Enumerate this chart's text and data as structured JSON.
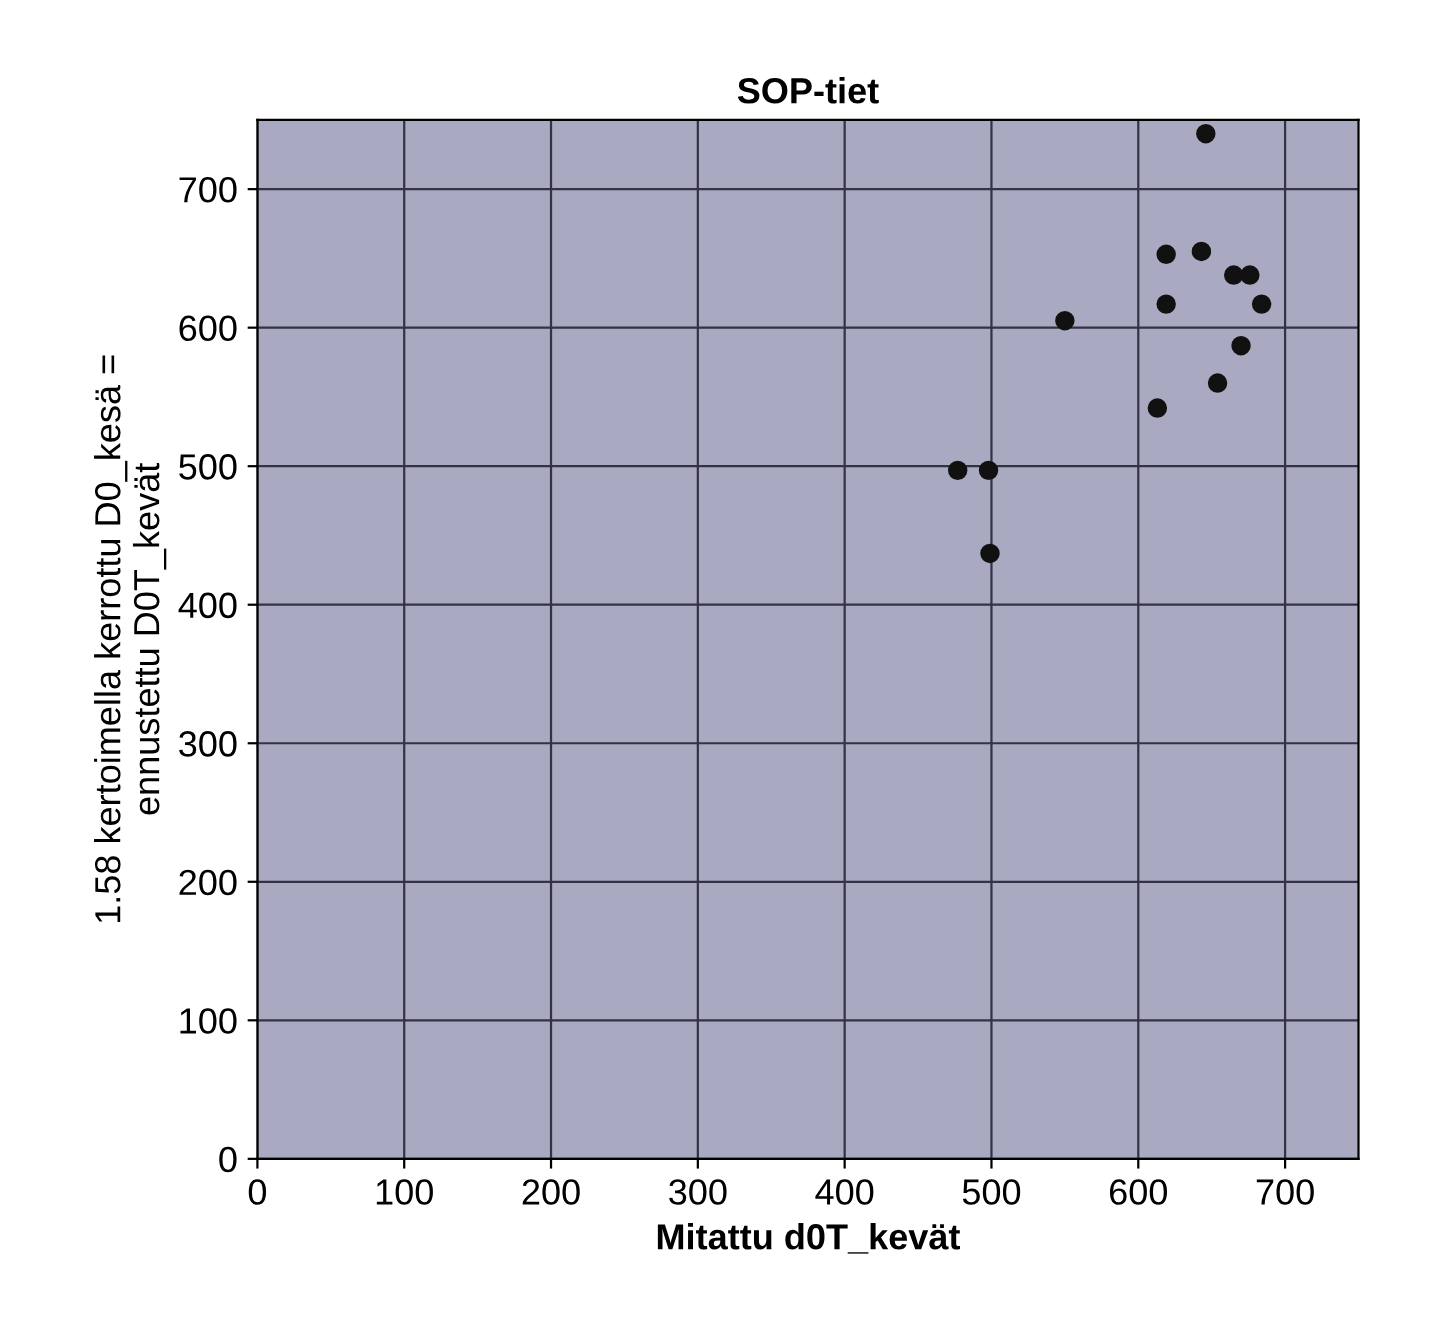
{
  "chart_data": {
    "type": "scatter",
    "title": "SOP-tiet",
    "xlabel": "Mitattu d0T_kevät",
    "ylabel": "1.58 kertoimella kerrottu D0_kesä =\nennustettu D0T_kevät",
    "x": [
      646,
      619,
      643,
      665,
      676,
      619,
      684,
      550,
      670,
      654,
      613,
      477,
      498,
      499
    ],
    "series": [
      {
        "color": "#111111",
        "values": [
          740,
          653,
          655,
          638,
          638,
          617,
          617,
          605,
          587,
          560,
          542,
          497,
          497,
          437
        ]
      }
    ],
    "xlim": [
      0,
      750
    ],
    "ylim": [
      0,
      750
    ],
    "xticks": [
      0,
      100,
      200,
      300,
      400,
      500,
      600,
      700
    ],
    "yticks": [
      0,
      100,
      200,
      300,
      400,
      500,
      600,
      700
    ],
    "grid": true,
    "marker": "circle",
    "legend": false
  }
}
